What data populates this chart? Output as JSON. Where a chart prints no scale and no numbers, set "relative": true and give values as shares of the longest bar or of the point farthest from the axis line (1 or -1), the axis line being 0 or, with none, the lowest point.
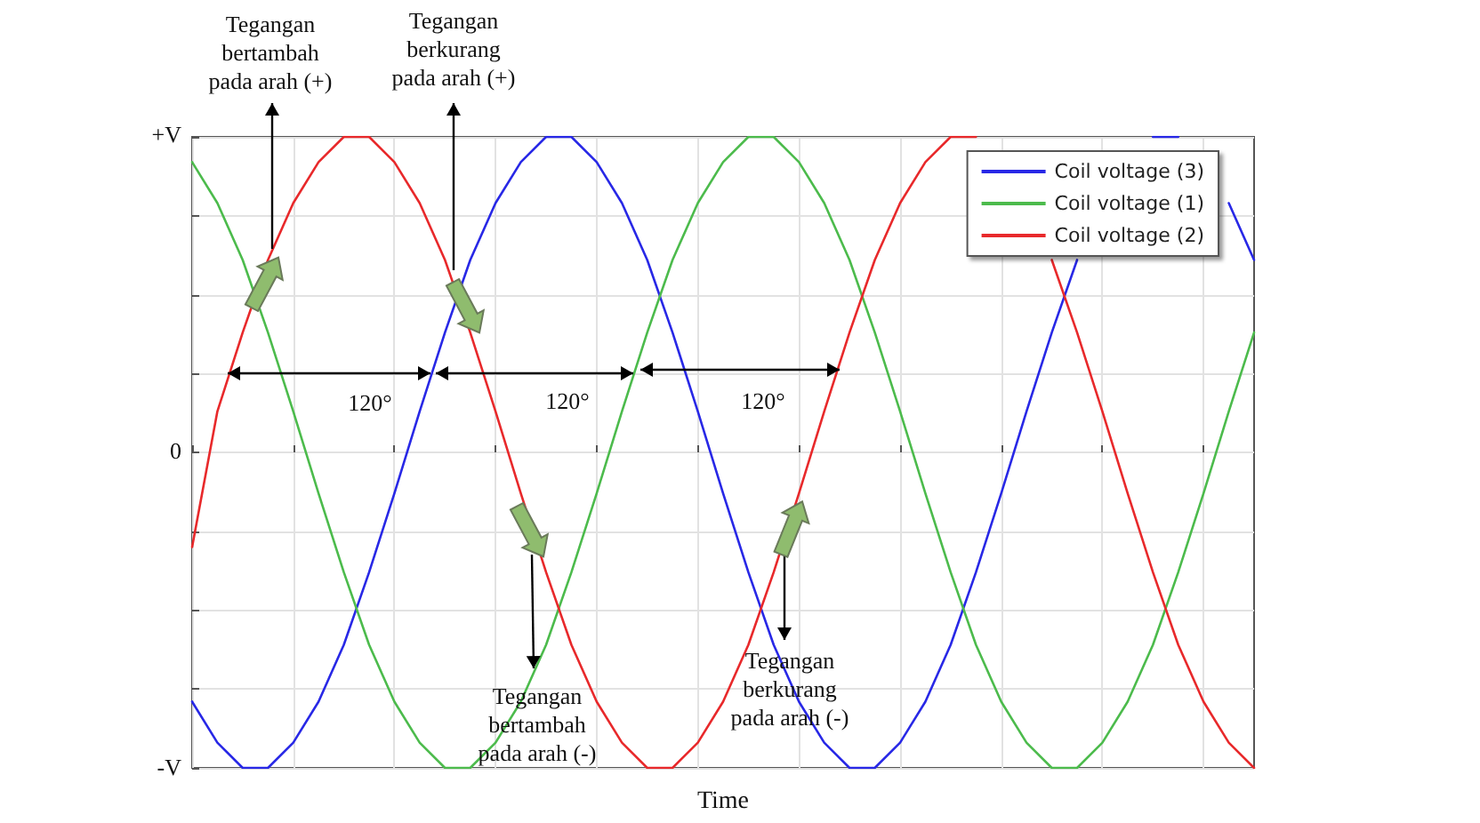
{
  "chart_data": {
    "type": "line",
    "xlabel": "Time",
    "relative": true,
    "categories": [
      null,
      null,
      null,
      null,
      null,
      null,
      null,
      null,
      null,
      null,
      null,
      null,
      null,
      null,
      null,
      null,
      null,
      null,
      null,
      null,
      null,
      null,
      null,
      null,
      null,
      null,
      null,
      null,
      null,
      null,
      null,
      null,
      null,
      null,
      null,
      null,
      null,
      null,
      null,
      null,
      null,
      null,
      null
    ],
    "series": [
      {
        "name": "Coil voltage (3)",
        "color": "#2828e6",
        "values": [
          -0.79,
          -0.92,
          -1,
          -1,
          -0.92,
          -0.79,
          -0.61,
          -0.38,
          -0.13,
          0.13,
          0.38,
          0.61,
          0.79,
          0.92,
          1,
          1,
          0.92,
          0.79,
          0.61,
          0.38,
          0.13,
          -0.13,
          -0.38,
          -0.61,
          -0.79,
          -0.92,
          -1,
          -1,
          -0.92,
          -0.79,
          -0.61,
          -0.38,
          -0.13,
          0.13,
          0.38,
          0.61,
          null,
          null,
          1,
          1,
          null,
          0.79,
          0.61
        ]
      },
      {
        "name": "Coil voltage (1)",
        "color": "#4cbb4c",
        "values": [
          0.92,
          0.79,
          0.61,
          0.38,
          0.13,
          -0.13,
          -0.38,
          -0.61,
          -0.79,
          -0.92,
          -1,
          -1,
          -0.92,
          -0.79,
          -0.61,
          -0.38,
          -0.13,
          0.13,
          0.38,
          0.61,
          0.79,
          0.92,
          1,
          1,
          0.92,
          0.79,
          0.61,
          0.38,
          0.13,
          -0.13,
          -0.38,
          -0.61,
          -0.79,
          -0.92,
          -1,
          -1,
          -0.92,
          -0.79,
          -0.61,
          -0.38,
          -0.13,
          0.13,
          0.38
        ]
      },
      {
        "name": "Coil voltage (2)",
        "color": "#e8292b",
        "values": [
          -0.3,
          0.13,
          0.38,
          0.61,
          0.79,
          0.92,
          1,
          1,
          0.92,
          0.79,
          0.61,
          0.38,
          0.13,
          -0.13,
          -0.38,
          -0.61,
          -0.79,
          -0.92,
          -1,
          -1,
          -0.92,
          -0.79,
          -0.61,
          -0.38,
          -0.13,
          0.13,
          0.38,
          0.61,
          0.79,
          0.92,
          1,
          1,
          null,
          null,
          0.61,
          0.38,
          0.13,
          -0.13,
          -0.38,
          -0.61,
          -0.79,
          -0.92,
          -1
        ]
      }
    ],
    "grid": true,
    "legend": "top right",
    "marker": "none",
    "line_style": "solid",
    "annotations": [
      "+V",
      "0",
      "-V",
      "Tegangan bertambah pada arah (+)",
      "Tegangan berkurang pada arah (+)",
      "Tegangan bertambah pada arah (-)",
      "Tegangan berkurang pada arah (-)",
      "120°",
      "120°",
      "120°"
    ]
  }
}
